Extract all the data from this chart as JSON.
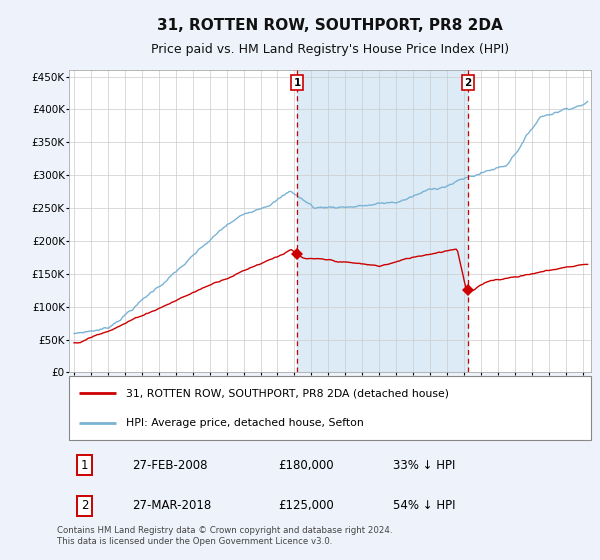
{
  "title": "31, ROTTEN ROW, SOUTHPORT, PR8 2DA",
  "subtitle": "Price paid vs. HM Land Registry's House Price Index (HPI)",
  "title_fontsize": 11,
  "subtitle_fontsize": 9,
  "bg_color": "#eef2fa",
  "plot_bg": "#ffffff",
  "hpi_line_color": "#7ab3d4",
  "price_line_color": "#cc0000",
  "hpi_fill_color": "#d6e8f5",
  "shaded_start": 2008.15,
  "shaded_end": 2018.23,
  "marker1_x": 2008.15,
  "marker1_y": 180000,
  "marker2_x": 2018.23,
  "marker2_y": 125000,
  "vline_color": "#cc0000",
  "legend_line1": "31, ROTTEN ROW, SOUTHPORT, PR8 2DA (detached house)",
  "legend_line2": "HPI: Average price, detached house, Sefton",
  "table_row1": [
    "1",
    "27-FEB-2008",
    "£180,000",
    "33% ↓ HPI"
  ],
  "table_row2": [
    "2",
    "27-MAR-2018",
    "£125,000",
    "54% ↓ HPI"
  ],
  "footer": "Contains HM Land Registry data © Crown copyright and database right 2024.\nThis data is licensed under the Open Government Licence v3.0.",
  "ylim": [
    0,
    460000
  ],
  "yticks": [
    0,
    50000,
    100000,
    150000,
    200000,
    250000,
    300000,
    350000,
    400000,
    450000
  ],
  "ytick_labels": [
    "£0",
    "£50K",
    "£100K",
    "£150K",
    "£200K",
    "£250K",
    "£300K",
    "£350K",
    "£400K",
    "£450K"
  ],
  "xlim_start": 1994.7,
  "xlim_end": 2025.5
}
